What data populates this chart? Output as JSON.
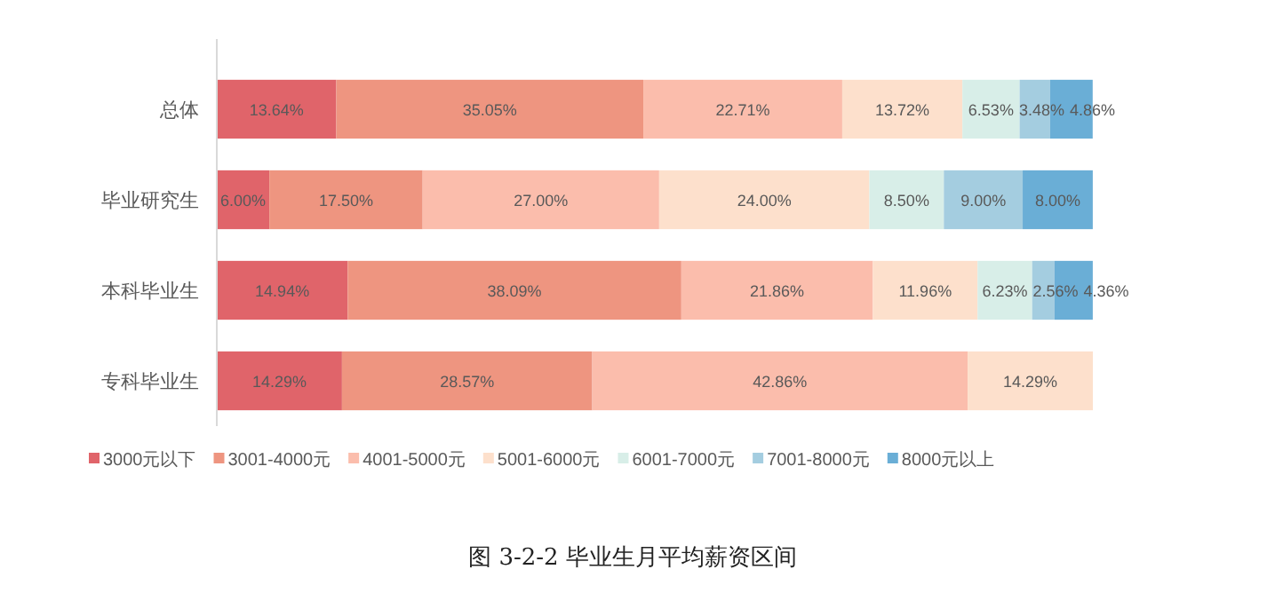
{
  "chart_data": {
    "type": "bar",
    "orientation": "horizontal",
    "stacked": true,
    "title": "图 3-2-2   毕业生月平均薪资区间",
    "categories": [
      "总体",
      "毕业研究生",
      "本科毕业生",
      "专科毕业生"
    ],
    "legend": "bottom",
    "series": [
      {
        "name": "3000元以下",
        "color": "#e0646a",
        "values": [
          13.64,
          6.0,
          14.94,
          14.29
        ],
        "value_labels": [
          "13.64%",
          "6.00%",
          "14.94%",
          "14.29%"
        ]
      },
      {
        "name": "3001-4000元",
        "color": "#ee9580",
        "values": [
          35.05,
          17.5,
          38.09,
          28.57
        ],
        "value_labels": [
          "35.05%",
          "17.50%",
          "38.09%",
          "28.57%"
        ]
      },
      {
        "name": "4001-5000元",
        "color": "#fbbdac",
        "values": [
          22.71,
          27.0,
          21.86,
          42.86
        ],
        "value_labels": [
          "22.71%",
          "27.00%",
          "21.86%",
          "42.86%"
        ]
      },
      {
        "name": "5001-6000元",
        "color": "#fde0cc",
        "values": [
          13.72,
          24.0,
          11.96,
          14.29
        ],
        "value_labels": [
          "13.72%",
          "24.00%",
          "11.96%",
          "14.29%"
        ]
      },
      {
        "name": "6001-7000元",
        "color": "#d8eee8",
        "values": [
          6.53,
          8.5,
          6.23,
          null
        ],
        "value_labels": [
          "6.53%",
          "8.50%",
          "6.23%",
          null
        ]
      },
      {
        "name": "7001-8000元",
        "color": "#a4cde0",
        "values": [
          3.48,
          9.0,
          2.56,
          null
        ],
        "value_labels": [
          "3.48%",
          "9.00%",
          "2.56%",
          null
        ]
      },
      {
        "name": "8000元以上",
        "color": "#6aaed6",
        "values": [
          4.86,
          8.0,
          4.36,
          null
        ],
        "value_labels": [
          "4.86%",
          "8.00%",
          "4.36%",
          null
        ]
      }
    ]
  }
}
